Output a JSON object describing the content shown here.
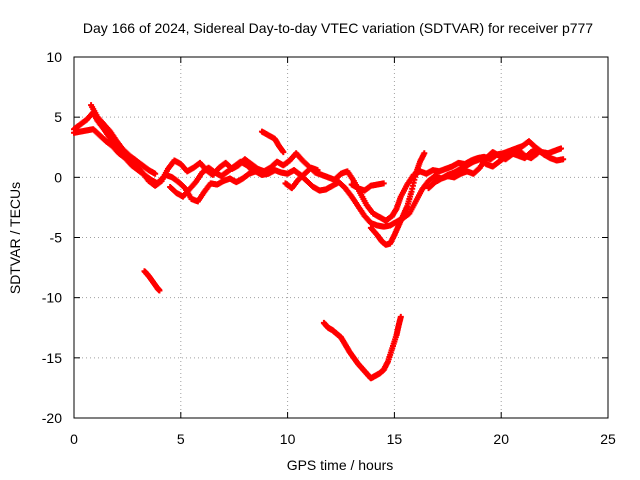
{
  "chart_data": {
    "type": "scatter",
    "title": "Day 166 of 2024, Sidereal Day-to-day VTEC variation (SDTVAR) for receiver p777",
    "xlabel": "GPS time / hours",
    "ylabel": "SDTVAR / TECUs",
    "xlim": [
      0,
      25
    ],
    "ylim": [
      -20,
      10
    ],
    "xticks": [
      0,
      5,
      10,
      15,
      20,
      25
    ],
    "yticks": [
      -20,
      -15,
      -10,
      -5,
      0,
      5,
      10
    ],
    "grid": true,
    "marker": "plus",
    "color": "#ff0000",
    "series": [
      {
        "name": "main-upper",
        "points": [
          [
            0.0,
            4.0
          ],
          [
            0.3,
            4.4
          ],
          [
            0.6,
            4.8
          ],
          [
            0.9,
            5.4
          ],
          [
            1.1,
            4.7
          ],
          [
            1.4,
            4.0
          ],
          [
            1.7,
            3.2
          ],
          [
            2.0,
            2.5
          ],
          [
            2.3,
            1.8
          ],
          [
            2.6,
            1.4
          ],
          [
            2.9,
            1.0
          ],
          [
            3.2,
            0.4
          ],
          [
            3.5,
            -0.3
          ],
          [
            3.8,
            -0.7
          ],
          [
            4.1,
            -0.3
          ],
          [
            4.4,
            0.7
          ],
          [
            4.7,
            1.4
          ],
          [
            5.0,
            1.1
          ],
          [
            5.3,
            0.5
          ],
          [
            5.6,
            0.8
          ],
          [
            5.9,
            1.2
          ],
          [
            6.2,
            0.6
          ],
          [
            6.5,
            0.2
          ],
          [
            6.8,
            0.8
          ],
          [
            7.1,
            1.2
          ],
          [
            7.4,
            0.7
          ],
          [
            7.7,
            1.0
          ],
          [
            8.0,
            1.5
          ],
          [
            8.3,
            1.1
          ],
          [
            8.6,
            0.7
          ],
          [
            8.9,
            0.5
          ],
          [
            9.2,
            0.8
          ],
          [
            9.5,
            1.3
          ],
          [
            9.8,
            1.0
          ],
          [
            10.1,
            1.4
          ],
          [
            10.4,
            2.0
          ],
          [
            10.7,
            1.4
          ],
          [
            11.0,
            0.9
          ],
          [
            11.3,
            0.4
          ],
          [
            11.6,
            0.2
          ],
          [
            11.9,
            0.0
          ],
          [
            12.2,
            -0.2
          ],
          [
            12.5,
            0.3
          ],
          [
            12.8,
            0.5
          ],
          [
            13.1,
            -0.3
          ],
          [
            13.4,
            -1.3
          ],
          [
            13.7,
            -2.3
          ],
          [
            14.0,
            -3.0
          ],
          [
            14.3,
            -3.3
          ],
          [
            14.6,
            -3.6
          ],
          [
            14.9,
            -3.2
          ],
          [
            15.1,
            -2.6
          ],
          [
            15.3,
            -1.6
          ],
          [
            15.6,
            -0.6
          ],
          [
            15.9,
            0.2
          ],
          [
            16.2,
            0.5
          ],
          [
            16.5,
            0.3
          ],
          [
            16.8,
            0.6
          ],
          [
            17.1,
            0.5
          ],
          [
            17.4,
            0.7
          ],
          [
            17.7,
            0.9
          ],
          [
            18.0,
            1.2
          ],
          [
            18.3,
            1.1
          ],
          [
            18.6,
            1.4
          ],
          [
            18.9,
            1.6
          ],
          [
            19.2,
            1.7
          ],
          [
            19.5,
            1.5
          ],
          [
            19.8,
            1.9
          ],
          [
            20.1,
            2.0
          ],
          [
            20.4,
            2.2
          ],
          [
            20.7,
            2.4
          ],
          [
            21.0,
            2.6
          ],
          [
            21.3,
            3.0
          ],
          [
            21.6,
            2.5
          ],
          [
            21.9,
            2.1
          ],
          [
            22.2,
            2.0
          ],
          [
            22.5,
            2.2
          ],
          [
            22.8,
            2.4
          ]
        ]
      },
      {
        "name": "main-lower",
        "points": [
          [
            0.0,
            3.7
          ],
          [
            0.3,
            3.8
          ],
          [
            0.6,
            3.9
          ],
          [
            0.9,
            4.0
          ],
          [
            1.2,
            3.5
          ],
          [
            1.5,
            3.0
          ],
          [
            1.8,
            2.6
          ],
          [
            2.1,
            2.0
          ],
          [
            2.4,
            1.6
          ],
          [
            2.7,
            1.0
          ],
          [
            3.0,
            0.6
          ],
          [
            3.3,
            0.2
          ],
          [
            3.6,
            -0.2
          ],
          [
            3.9,
            -0.5
          ],
          [
            4.3,
            0.2
          ],
          [
            4.6,
            0.0
          ],
          [
            4.9,
            -0.4
          ],
          [
            5.2,
            -0.9
          ],
          [
            5.5,
            -1.8
          ],
          [
            5.8,
            -2.0
          ],
          [
            6.1,
            -1.2
          ],
          [
            6.4,
            -0.5
          ],
          [
            6.7,
            -0.6
          ],
          [
            7.0,
            -0.3
          ],
          [
            7.3,
            -0.1
          ],
          [
            7.6,
            -0.4
          ],
          [
            7.9,
            -0.1
          ],
          [
            8.2,
            0.3
          ],
          [
            8.5,
            0.5
          ],
          [
            8.8,
            0.2
          ],
          [
            9.1,
            0.3
          ],
          [
            9.4,
            0.6
          ],
          [
            9.7,
            0.4
          ],
          [
            10.0,
            0.3
          ],
          [
            10.3,
            0.6
          ],
          [
            10.6,
            0.2
          ],
          [
            10.9,
            -0.3
          ],
          [
            11.2,
            -0.8
          ],
          [
            11.5,
            -1.1
          ],
          [
            11.8,
            -1.0
          ],
          [
            12.1,
            -0.7
          ],
          [
            12.4,
            -0.4
          ],
          [
            12.7,
            -0.9
          ],
          [
            13.0,
            -1.6
          ],
          [
            13.3,
            -2.4
          ],
          [
            13.6,
            -3.2
          ],
          [
            13.9,
            -3.8
          ],
          [
            14.2,
            -4.0
          ],
          [
            14.5,
            -4.1
          ],
          [
            14.8,
            -4.0
          ],
          [
            15.1,
            -3.7
          ],
          [
            15.4,
            -3.4
          ],
          [
            15.7,
            -3.0
          ],
          [
            16.0,
            -2.0
          ],
          [
            16.3,
            -1.0
          ],
          [
            16.6,
            -0.3
          ],
          [
            16.9,
            0.1
          ],
          [
            17.2,
            -0.1
          ],
          [
            17.5,
            0.2
          ],
          [
            17.8,
            0.4
          ],
          [
            18.1,
            0.7
          ],
          [
            18.4,
            1.0
          ],
          [
            18.7,
            1.3
          ],
          [
            19.0,
            1.5
          ],
          [
            19.3,
            1.1
          ],
          [
            19.6,
            0.9
          ],
          [
            19.9,
            1.3
          ],
          [
            20.2,
            1.7
          ],
          [
            20.5,
            2.0
          ],
          [
            20.8,
            1.8
          ],
          [
            21.1,
            1.6
          ],
          [
            21.4,
            2.1
          ],
          [
            21.7,
            2.3
          ],
          [
            22.0,
            1.9
          ],
          [
            22.3,
            1.6
          ],
          [
            22.6,
            1.4
          ],
          [
            22.9,
            1.5
          ]
        ]
      },
      {
        "name": "segment-a",
        "points": [
          [
            0.8,
            6.0
          ],
          [
            1.1,
            5.0
          ],
          [
            1.4,
            4.4
          ],
          [
            1.7,
            3.8
          ],
          [
            2.0,
            3.0
          ],
          [
            2.3,
            2.3
          ],
          [
            2.6,
            1.8
          ],
          [
            2.9,
            1.4
          ],
          [
            3.2,
            1.0
          ],
          [
            3.5,
            0.6
          ],
          [
            3.8,
            0.3
          ]
        ]
      },
      {
        "name": "segment-b",
        "points": [
          [
            4.5,
            -0.8
          ],
          [
            4.8,
            -1.3
          ],
          [
            5.1,
            -1.6
          ],
          [
            5.4,
            -1.0
          ],
          [
            5.7,
            -0.4
          ],
          [
            6.0,
            0.4
          ],
          [
            6.3,
            0.8
          ],
          [
            6.6,
            0.4
          ],
          [
            6.9,
            0.1
          ],
          [
            7.2,
            0.5
          ],
          [
            7.5,
            0.9
          ],
          [
            7.8,
            1.3
          ],
          [
            8.1,
            1.0
          ],
          [
            8.4,
            0.5
          ],
          [
            8.7,
            0.6
          ]
        ]
      },
      {
        "name": "segment-c",
        "points": [
          [
            8.8,
            3.8
          ],
          [
            9.1,
            3.5
          ],
          [
            9.4,
            3.2
          ],
          [
            9.6,
            2.6
          ],
          [
            9.8,
            2.1
          ]
        ]
      },
      {
        "name": "segment-d",
        "points": [
          [
            9.9,
            -0.5
          ],
          [
            10.2,
            -0.9
          ],
          [
            10.5,
            -0.2
          ],
          [
            10.8,
            0.3
          ],
          [
            11.1,
            0.8
          ],
          [
            11.4,
            0.6
          ]
        ]
      },
      {
        "name": "segment-e",
        "points": [
          [
            13.0,
            -0.6
          ],
          [
            13.3,
            -0.9
          ],
          [
            13.6,
            -1.1
          ],
          [
            13.9,
            -0.7
          ],
          [
            14.2,
            -0.6
          ],
          [
            14.5,
            -0.5
          ]
        ]
      },
      {
        "name": "segment-f",
        "points": [
          [
            13.9,
            -4.2
          ],
          [
            14.2,
            -4.8
          ],
          [
            14.4,
            -5.3
          ],
          [
            14.6,
            -5.6
          ],
          [
            14.8,
            -5.5
          ],
          [
            15.0,
            -4.8
          ],
          [
            15.2,
            -4.0
          ],
          [
            15.4,
            -3.2
          ],
          [
            15.6,
            -2.4
          ],
          [
            15.8,
            -1.2
          ],
          [
            16.0,
            0.3
          ],
          [
            16.2,
            1.3
          ],
          [
            16.4,
            2.0
          ]
        ]
      },
      {
        "name": "segment-g",
        "points": [
          [
            16.6,
            -0.9
          ],
          [
            16.9,
            -0.4
          ],
          [
            17.2,
            -0.1
          ],
          [
            17.5,
            0.1
          ],
          [
            17.8,
            0.0
          ],
          [
            18.1,
            0.3
          ],
          [
            18.4,
            0.5
          ],
          [
            18.7,
            0.3
          ],
          [
            19.0,
            0.8
          ],
          [
            19.3,
            1.6
          ],
          [
            19.6,
            2.1
          ],
          [
            19.9,
            1.8
          ],
          [
            20.2,
            1.5
          ],
          [
            20.5,
            1.9
          ],
          [
            20.8,
            2.3
          ],
          [
            21.1,
            1.8
          ],
          [
            21.4,
            1.6
          ],
          [
            21.7,
            2.0
          ]
        ]
      },
      {
        "name": "segment-h",
        "points": [
          [
            3.3,
            -7.8
          ],
          [
            3.5,
            -8.2
          ],
          [
            3.7,
            -8.7
          ],
          [
            3.9,
            -9.2
          ],
          [
            4.0,
            -9.4
          ]
        ]
      },
      {
        "name": "segment-i",
        "points": [
          [
            11.7,
            -12.1
          ],
          [
            11.9,
            -12.5
          ],
          [
            12.1,
            -12.7
          ],
          [
            12.3,
            -13.0
          ],
          [
            12.5,
            -13.3
          ],
          [
            12.7,
            -13.9
          ],
          [
            12.9,
            -14.5
          ],
          [
            13.1,
            -15.0
          ],
          [
            13.3,
            -15.5
          ],
          [
            13.5,
            -15.9
          ],
          [
            13.7,
            -16.3
          ],
          [
            13.9,
            -16.7
          ],
          [
            14.1,
            -16.5
          ],
          [
            14.3,
            -16.3
          ],
          [
            14.5,
            -16.0
          ],
          [
            14.7,
            -15.3
          ],
          [
            14.9,
            -14.2
          ],
          [
            15.1,
            -13.1
          ],
          [
            15.2,
            -12.3
          ],
          [
            15.3,
            -11.6
          ]
        ]
      }
    ]
  }
}
